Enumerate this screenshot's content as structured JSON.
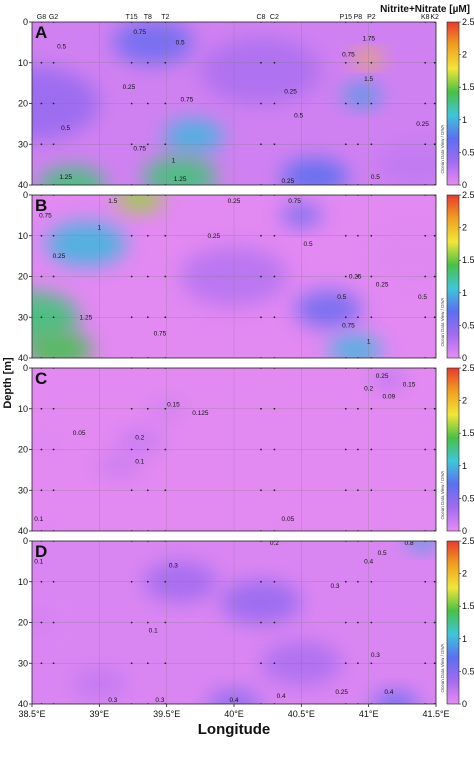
{
  "chart_data": {
    "type": "heatmap",
    "colorbar": {
      "title": "Nitrite+Nitrate [µM]",
      "range": [
        0,
        2.5
      ],
      "ticks": [
        "0",
        "0.5",
        "1",
        "1.5",
        "2",
        "2.5"
      ],
      "colors": [
        "#e88cf2",
        "#a26cf0",
        "#5b6ff0",
        "#3fc6d9",
        "#49c046",
        "#f1e63a",
        "#f0a020",
        "#e83a2e"
      ]
    },
    "credit": "Ocean Data View / DIVA",
    "xlabel": "Longitude",
    "ylabel": "Depth [m]",
    "x_ticks": [
      "38.5°E",
      "39°E",
      "39.5°E",
      "40°E",
      "40.5°E",
      "41°E",
      "41.5°E"
    ],
    "x_values": [
      38.5,
      39,
      39.5,
      40,
      40.5,
      41,
      41.5
    ],
    "y_ticks": [
      "0",
      "10",
      "20",
      "30",
      "40"
    ],
    "y_values": [
      0,
      10,
      20,
      30,
      40
    ],
    "xlim": [
      38.5,
      41.5
    ],
    "ylim": [
      40,
      0
    ],
    "stations": [
      {
        "name": "G8",
        "lon": 38.57
      },
      {
        "name": "G2",
        "lon": 38.66
      },
      {
        "name": "T15",
        "lon": 39.24
      },
      {
        "name": "T8",
        "lon": 39.36
      },
      {
        "name": "T2",
        "lon": 39.49
      },
      {
        "name": "C8",
        "lon": 40.2
      },
      {
        "name": "C2",
        "lon": 40.3
      },
      {
        "name": "P15",
        "lon": 40.83
      },
      {
        "name": "P8",
        "lon": 40.92
      },
      {
        "name": "P2",
        "lon": 41.02
      },
      {
        "name": "K8",
        "lon": 41.42
      },
      {
        "name": "K2",
        "lon": 41.49
      }
    ],
    "sample_depths": [
      0,
      10,
      20,
      30,
      40
    ],
    "panels": [
      {
        "label": "A",
        "fields": [
          {
            "lon": 38.5,
            "depth": 20,
            "value": 0.4,
            "radius": 1.0
          },
          {
            "lon": 39.6,
            "depth": 38,
            "value": 1.3,
            "radius": 0.55
          },
          {
            "lon": 38.8,
            "depth": 40,
            "value": 1.3,
            "radius": 0.5
          },
          {
            "lon": 39.7,
            "depth": 28,
            "value": 1.0,
            "radius": 0.45
          },
          {
            "lon": 40.6,
            "depth": 38,
            "value": 0.7,
            "radius": 0.5
          },
          {
            "lon": 41.0,
            "depth": 9,
            "value": 2.0,
            "radius": 0.2
          },
          {
            "lon": 40.95,
            "depth": 18,
            "value": 0.9,
            "radius": 0.3
          },
          {
            "lon": 40.2,
            "depth": 12,
            "value": 0.3,
            "radius": 0.9
          },
          {
            "lon": 41.35,
            "depth": 35,
            "value": 0.2,
            "radius": 0.6
          },
          {
            "lon": 39.4,
            "depth": 5,
            "value": 0.6,
            "radius": 0.6
          }
        ],
        "contour_labels": [
          {
            "lon": 38.72,
            "depth": 6,
            "text": "0.5"
          },
          {
            "lon": 39.3,
            "depth": 2.5,
            "text": "0.75"
          },
          {
            "lon": 39.6,
            "depth": 5,
            "text": "0.5"
          },
          {
            "lon": 39.22,
            "depth": 16,
            "text": "0.25"
          },
          {
            "lon": 39.65,
            "depth": 19,
            "text": "0.75"
          },
          {
            "lon": 40.42,
            "depth": 17,
            "text": "0.25"
          },
          {
            "lon": 40.48,
            "depth": 23,
            "text": "0.5"
          },
          {
            "lon": 38.75,
            "depth": 26,
            "text": "0.5"
          },
          {
            "lon": 39.3,
            "depth": 31,
            "text": "0.75"
          },
          {
            "lon": 39.55,
            "depth": 34,
            "text": "1"
          },
          {
            "lon": 38.75,
            "depth": 38,
            "text": "1.25"
          },
          {
            "lon": 39.6,
            "depth": 38.5,
            "text": "1.25"
          },
          {
            "lon": 40.4,
            "depth": 39,
            "text": "0.25"
          },
          {
            "lon": 41.0,
            "depth": 4,
            "text": "1.75"
          },
          {
            "lon": 41.0,
            "depth": 14,
            "text": "1.5"
          },
          {
            "lon": 40.85,
            "depth": 8,
            "text": "0.75"
          },
          {
            "lon": 41.4,
            "depth": 25,
            "text": "0.25"
          },
          {
            "lon": 41.05,
            "depth": 38,
            "text": "0.5"
          }
        ]
      },
      {
        "label": "B",
        "fields": [
          {
            "lon": 38.5,
            "depth": 30,
            "value": 1.3,
            "radius": 0.7
          },
          {
            "lon": 38.7,
            "depth": 38,
            "value": 1.4,
            "radius": 0.5
          },
          {
            "lon": 38.9,
            "depth": 12,
            "value": 1.0,
            "radius": 0.6
          },
          {
            "lon": 39.3,
            "depth": 1,
            "value": 1.6,
            "radius": 0.35
          },
          {
            "lon": 40.0,
            "depth": 20,
            "value": 0.25,
            "radius": 0.8
          },
          {
            "lon": 40.7,
            "depth": 28,
            "value": 0.6,
            "radius": 0.5
          },
          {
            "lon": 40.9,
            "depth": 38,
            "value": 1.0,
            "radius": 0.4
          },
          {
            "lon": 41.35,
            "depth": 15,
            "value": 0.05,
            "radius": 0.55
          },
          {
            "lon": 40.5,
            "depth": 5,
            "value": 0.6,
            "radius": 0.3
          }
        ],
        "contour_labels": [
          {
            "lon": 39.1,
            "depth": 1.5,
            "text": "1.5"
          },
          {
            "lon": 38.6,
            "depth": 5,
            "text": "0.75"
          },
          {
            "lon": 38.7,
            "depth": 15,
            "text": "0.25"
          },
          {
            "lon": 39.0,
            "depth": 8,
            "text": "1"
          },
          {
            "lon": 39.85,
            "depth": 10,
            "text": "0.25"
          },
          {
            "lon": 40.45,
            "depth": 1.5,
            "text": "0.75"
          },
          {
            "lon": 40.55,
            "depth": 12,
            "text": "0.5"
          },
          {
            "lon": 40.0,
            "depth": 1.5,
            "text": "0.25"
          },
          {
            "lon": 38.9,
            "depth": 30,
            "text": "1.25"
          },
          {
            "lon": 39.45,
            "depth": 34,
            "text": "0.75"
          },
          {
            "lon": 40.8,
            "depth": 25,
            "text": "0.5"
          },
          {
            "lon": 40.85,
            "depth": 32,
            "text": "0.75"
          },
          {
            "lon": 41.0,
            "depth": 36,
            "text": "1"
          },
          {
            "lon": 41.1,
            "depth": 22,
            "text": "0.25"
          },
          {
            "lon": 41.4,
            "depth": 25,
            "text": "0.5"
          },
          {
            "lon": 40.9,
            "depth": 20,
            "text": "0.25"
          }
        ]
      },
      {
        "label": "C",
        "fields": [
          {
            "lon": 39.3,
            "depth": 18,
            "value": 0.17,
            "radius": 0.35
          },
          {
            "lon": 39.15,
            "depth": 24,
            "value": 0.15,
            "radius": 0.35
          },
          {
            "lon": 39.5,
            "depth": 10,
            "value": 0.11,
            "radius": 0.3
          },
          {
            "lon": 38.6,
            "depth": 18,
            "value": 0.05,
            "radius": 0.3
          },
          {
            "lon": 41.15,
            "depth": 3,
            "value": 0.25,
            "radius": 0.25
          },
          {
            "lon": 38.6,
            "depth": 40,
            "value": 0.06,
            "radius": 0.2
          },
          {
            "lon": 40.3,
            "depth": 40,
            "value": 0.04,
            "radius": 0.3
          }
        ],
        "contour_labels": [
          {
            "lon": 39.55,
            "depth": 9,
            "text": "0.15"
          },
          {
            "lon": 39.75,
            "depth": 11,
            "text": "0.125"
          },
          {
            "lon": 38.85,
            "depth": 16,
            "text": "0.05"
          },
          {
            "lon": 39.3,
            "depth": 17,
            "text": "0.2"
          },
          {
            "lon": 39.3,
            "depth": 23,
            "text": "0.1"
          },
          {
            "lon": 41.1,
            "depth": 2,
            "text": "0.25"
          },
          {
            "lon": 41.3,
            "depth": 4,
            "text": "0.15"
          },
          {
            "lon": 41.15,
            "depth": 7,
            "text": "0.09"
          },
          {
            "lon": 41.0,
            "depth": 5,
            "text": "0.2"
          },
          {
            "lon": 40.4,
            "depth": 37,
            "text": "0.05"
          },
          {
            "lon": 38.55,
            "depth": 37,
            "text": "0.1"
          }
        ]
      },
      {
        "label": "D",
        "fields": [
          {
            "lon": 38.5,
            "depth": 20,
            "value": 0.12,
            "radius": 0.3
          },
          {
            "lon": 39.6,
            "depth": 10,
            "value": 0.35,
            "radius": 0.55
          },
          {
            "lon": 40.2,
            "depth": 15,
            "value": 0.4,
            "radius": 0.6
          },
          {
            "lon": 40.5,
            "depth": 30,
            "value": 0.3,
            "radius": 0.6
          },
          {
            "lon": 41.4,
            "depth": 0,
            "value": 0.9,
            "radius": 0.25
          },
          {
            "lon": 41.2,
            "depth": 40,
            "value": 0.6,
            "radius": 0.35
          },
          {
            "lon": 40.0,
            "depth": 40,
            "value": 0.45,
            "radius": 0.4
          },
          {
            "lon": 39.0,
            "depth": 35,
            "value": 0.2,
            "radius": 0.4
          }
        ],
        "contour_labels": [
          {
            "lon": 40.3,
            "depth": 0.5,
            "text": "0.2"
          },
          {
            "lon": 41.3,
            "depth": 0.5,
            "text": "0.8"
          },
          {
            "lon": 41.1,
            "depth": 3,
            "text": "0.5"
          },
          {
            "lon": 41.0,
            "depth": 5,
            "text": "0.4"
          },
          {
            "lon": 39.55,
            "depth": 6,
            "text": "0.3"
          },
          {
            "lon": 40.75,
            "depth": 11,
            "text": "0.3"
          },
          {
            "lon": 39.4,
            "depth": 22,
            "text": "0.1"
          },
          {
            "lon": 38.55,
            "depth": 5,
            "text": "0.1"
          },
          {
            "lon": 41.05,
            "depth": 28,
            "text": "0.3"
          },
          {
            "lon": 39.1,
            "depth": 39,
            "text": "0.3"
          },
          {
            "lon": 39.45,
            "depth": 39,
            "text": "0.3"
          },
          {
            "lon": 40.0,
            "depth": 39,
            "text": "0.4"
          },
          {
            "lon": 40.35,
            "depth": 38,
            "text": "0.4"
          },
          {
            "lon": 40.8,
            "depth": 37,
            "text": "0.25"
          },
          {
            "lon": 41.15,
            "depth": 37,
            "text": "0.4"
          }
        ]
      }
    ]
  }
}
